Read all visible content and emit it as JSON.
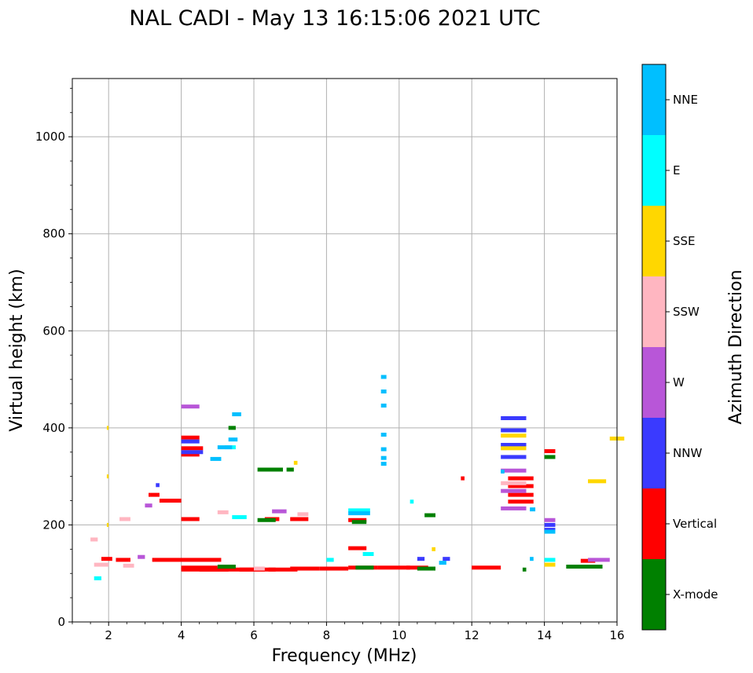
{
  "chart_data": {
    "type": "scatter",
    "title": "NAL CADI - May 13 16:15:06 2021 UTC",
    "xlabel": "Frequency (MHz)",
    "ylabel": "Virtual height (km)",
    "xlim": [
      1,
      16
    ],
    "ylim": [
      0,
      1120
    ],
    "xticks": [
      2,
      4,
      6,
      8,
      10,
      12,
      14,
      16
    ],
    "yticks": [
      0,
      200,
      400,
      600,
      800,
      1000
    ],
    "grid": true,
    "colorbar": {
      "label": "Azimuth Direction",
      "categories": [
        {
          "name": "X-mode",
          "color": "#008000"
        },
        {
          "name": "Vertical",
          "color": "#ff0000"
        },
        {
          "name": "NNW",
          "color": "#3a3aff"
        },
        {
          "name": "W",
          "color": "#b856d8"
        },
        {
          "name": "SSW",
          "color": "#ffb6c1"
        },
        {
          "name": "SSE",
          "color": "#ffd700"
        },
        {
          "name": "E",
          "color": "#00ffff"
        },
        {
          "name": "NNE",
          "color": "#00bfff"
        }
      ]
    },
    "series": [
      {
        "name": "Vertical",
        "color": "#ff0000",
        "points": [
          [
            1.8,
            130,
            0.3
          ],
          [
            2.2,
            128,
            0.4
          ],
          [
            3.2,
            128,
            1.9
          ],
          [
            3.4,
            250,
            0.6
          ],
          [
            4.0,
            108,
            1.0
          ],
          [
            4.0,
            112,
            1.0
          ],
          [
            4.5,
            108,
            0.8
          ],
          [
            5.0,
            108,
            1.0
          ],
          [
            5.6,
            108,
            0.7
          ],
          [
            6.0,
            108,
            0.6
          ],
          [
            6.4,
            108,
            0.8
          ],
          [
            7.0,
            110,
            0.8
          ],
          [
            7.8,
            110,
            0.8
          ],
          [
            8.6,
            112,
            0.8
          ],
          [
            9.4,
            112,
            0.9
          ],
          [
            10.2,
            112,
            0.6
          ],
          [
            12.0,
            112,
            0.8
          ],
          [
            15.0,
            126,
            0.4
          ],
          [
            4.0,
            212,
            0.5
          ],
          [
            4.0,
            345,
            0.5
          ],
          [
            4.0,
            358,
            0.6
          ],
          [
            4.0,
            380,
            0.5
          ],
          [
            6.3,
            212,
            0.4
          ],
          [
            7.0,
            212,
            0.5
          ],
          [
            8.6,
            152,
            0.5
          ],
          [
            8.6,
            210,
            0.5
          ],
          [
            13.0,
            248,
            0.7
          ],
          [
            13.0,
            262,
            0.7
          ],
          [
            13.0,
            280,
            0.7
          ],
          [
            13.0,
            296,
            0.7
          ],
          [
            14.0,
            352,
            0.3
          ],
          [
            11.7,
            296,
            0.1
          ],
          [
            3.1,
            262,
            0.3
          ]
        ]
      },
      {
        "name": "X-mode",
        "color": "#008000",
        "points": [
          [
            5.0,
            114,
            0.5
          ],
          [
            8.8,
            112,
            0.5
          ],
          [
            10.5,
            110,
            0.5
          ],
          [
            14.6,
            114,
            1.0
          ],
          [
            6.1,
            314,
            0.7
          ],
          [
            6.1,
            210,
            0.5
          ],
          [
            8.7,
            206,
            0.4
          ],
          [
            5.3,
            400,
            0.2
          ],
          [
            14.0,
            340,
            0.3
          ],
          [
            13.4,
            108,
            0.1
          ],
          [
            6.9,
            314,
            0.2
          ],
          [
            10.7,
            220,
            0.3
          ]
        ]
      },
      {
        "name": "NNW",
        "color": "#3a3aff",
        "points": [
          [
            12.8,
            420,
            0.7
          ],
          [
            12.8,
            395,
            0.7
          ],
          [
            12.8,
            365,
            0.7
          ],
          [
            12.8,
            340,
            0.7
          ],
          [
            4.0,
            372,
            0.5
          ],
          [
            4.0,
            350,
            0.6
          ],
          [
            14.0,
            200,
            0.3
          ],
          [
            10.5,
            130,
            0.2
          ],
          [
            11.2,
            130,
            0.2
          ],
          [
            14.0,
            190,
            0.3
          ],
          [
            3.3,
            282,
            0.1
          ]
        ]
      },
      {
        "name": "W",
        "color": "#b856d8",
        "points": [
          [
            12.8,
            312,
            0.7
          ],
          [
            12.8,
            270,
            0.7
          ],
          [
            12.8,
            234,
            0.7
          ],
          [
            15.2,
            128,
            0.6
          ],
          [
            6.5,
            228,
            0.4
          ],
          [
            3.0,
            240,
            0.2
          ],
          [
            14.0,
            210,
            0.3
          ],
          [
            4.0,
            444,
            0.5
          ],
          [
            2.8,
            134,
            0.2
          ]
        ]
      },
      {
        "name": "SSW",
        "color": "#ffb6c1",
        "points": [
          [
            1.5,
            170,
            0.2
          ],
          [
            1.6,
            118,
            0.4
          ],
          [
            2.3,
            212,
            0.3
          ],
          [
            2.4,
            116,
            0.3
          ],
          [
            5.0,
            226,
            0.3
          ],
          [
            7.2,
            222,
            0.3
          ],
          [
            12.8,
            286,
            0.7
          ],
          [
            6.0,
            110,
            0.3
          ]
        ]
      },
      {
        "name": "SSE",
        "color": "#ffd700",
        "points": [
          [
            12.8,
            384,
            0.7
          ],
          [
            12.8,
            358,
            0.7
          ],
          [
            10.9,
            150,
            0.1
          ],
          [
            15.2,
            290,
            0.5
          ],
          [
            15.8,
            378,
            0.4
          ],
          [
            14.0,
            118,
            0.3
          ],
          [
            7.1,
            328,
            0.1
          ],
          [
            1.95,
            400,
            0.05
          ],
          [
            1.95,
            300,
            0.05
          ],
          [
            1.95,
            200,
            0.05
          ]
        ]
      },
      {
        "name": "E",
        "color": "#00ffff",
        "points": [
          [
            8.6,
            230,
            0.6
          ],
          [
            9.0,
            140,
            0.3
          ],
          [
            14.0,
            128,
            0.3
          ],
          [
            1.6,
            90,
            0.2
          ],
          [
            5.4,
            216,
            0.4
          ],
          [
            8.0,
            128,
            0.2
          ],
          [
            5.2,
            360,
            0.3
          ],
          [
            10.3,
            248,
            0.1
          ]
        ]
      },
      {
        "name": "NNE",
        "color": "#00bfff",
        "points": [
          [
            5.4,
            428,
            0.25
          ],
          [
            5.3,
            376,
            0.25
          ],
          [
            5.0,
            360,
            0.4
          ],
          [
            4.8,
            336,
            0.3
          ],
          [
            9.5,
            505,
            0.15
          ],
          [
            9.5,
            475,
            0.15
          ],
          [
            9.5,
            446,
            0.15
          ],
          [
            9.5,
            386,
            0.15
          ],
          [
            9.5,
            356,
            0.15
          ],
          [
            9.5,
            338,
            0.15
          ],
          [
            9.5,
            326,
            0.15
          ],
          [
            8.6,
            224,
            0.6
          ],
          [
            13.6,
            232,
            0.15
          ],
          [
            14.0,
            186,
            0.3
          ],
          [
            13.6,
            130,
            0.1
          ],
          [
            12.8,
            310,
            0.1
          ],
          [
            11.1,
            122,
            0.2
          ]
        ]
      }
    ]
  }
}
